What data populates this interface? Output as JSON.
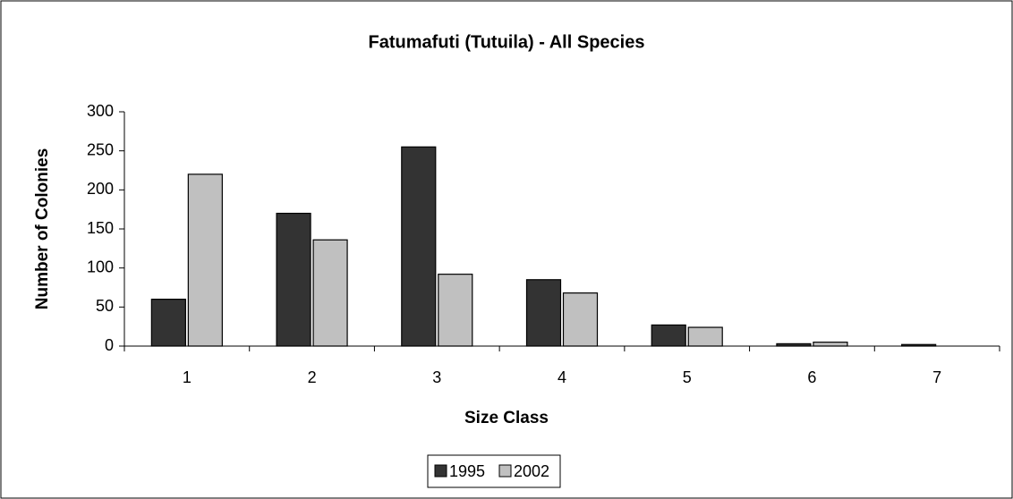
{
  "chart_data": {
    "type": "bar",
    "title": "Fatumafuti (Tutuila) - All Species",
    "x_label": "Size Class",
    "y_label": "Number of Colonies",
    "categories": [
      "1",
      "2",
      "3",
      "4",
      "5",
      "6",
      "7"
    ],
    "series": [
      {
        "name": "1995",
        "color": "#333333",
        "values": [
          60,
          170,
          255,
          85,
          27,
          3,
          2
        ]
      },
      {
        "name": "2002",
        "color": "#c0c0c0",
        "values": [
          220,
          136,
          92,
          68,
          24,
          5,
          0
        ]
      }
    ],
    "ylim": [
      0,
      300
    ],
    "yticks": [
      0,
      50,
      100,
      150,
      200,
      250,
      300
    ],
    "grid": false,
    "legend": "bottom"
  }
}
